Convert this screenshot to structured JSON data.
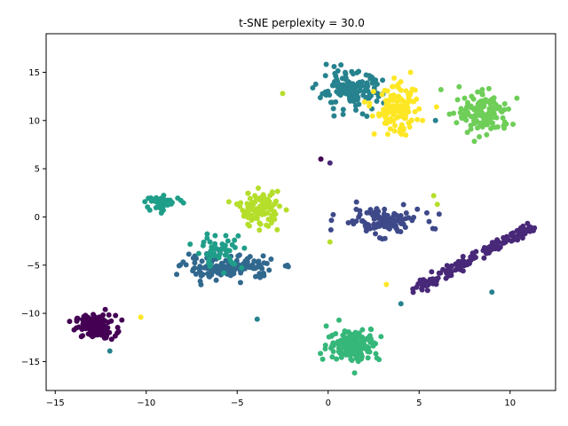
{
  "chart_data": {
    "type": "scatter",
    "title": "t-SNE perplexity = 30.0",
    "xlabel": "",
    "ylabel": "",
    "xlim": [
      -15.5,
      12.5
    ],
    "ylim": [
      -18,
      19
    ],
    "xticks": [
      -15,
      -10,
      -5,
      0,
      5,
      10
    ],
    "yticks": [
      -15,
      -10,
      -5,
      0,
      5,
      10,
      15
    ],
    "grid": false,
    "legend": "none",
    "marker_size": 3,
    "clusters": [
      {
        "color": "#440154",
        "center": [
          -12.8,
          -11.4
        ],
        "spread": [
          1.0,
          1.1
        ],
        "n": 120
      },
      {
        "color": "#482878",
        "center": [
          8.0,
          -4.1
        ],
        "spread": [
          4.0,
          0.28
        ],
        "n": 160,
        "shape": "line",
        "end_a": [
          4.8,
          -7.5
        ],
        "end_b": [
          11.2,
          -1.0
        ]
      },
      {
        "color": "#3e4989",
        "center": [
          2.9,
          -0.4
        ],
        "spread": [
          2.0,
          1.3
        ],
        "n": 110
      },
      {
        "color": "#31688e",
        "center": [
          -5.5,
          -5.2
        ],
        "spread": [
          2.3,
          1.1
        ],
        "n": 150
      },
      {
        "color": "#26828e",
        "center": [
          1.2,
          13.0
        ],
        "spread": [
          1.6,
          1.8
        ],
        "n": 140
      },
      {
        "color": "#1f9e89",
        "center": [
          -9.0,
          1.5
        ],
        "spread": [
          0.9,
          0.6
        ],
        "n": 40
      },
      {
        "color": "#1f9e89",
        "center": [
          -6.0,
          -3.5
        ],
        "spread": [
          1.2,
          1.6
        ],
        "n": 50
      },
      {
        "color": "#35b779",
        "center": [
          1.4,
          -13.2
        ],
        "spread": [
          1.3,
          1.6
        ],
        "n": 150
      },
      {
        "color": "#6ece58",
        "center": [
          8.6,
          10.6
        ],
        "spread": [
          1.3,
          1.8
        ],
        "n": 140
      },
      {
        "color": "#b5de2b",
        "center": [
          -3.8,
          0.8
        ],
        "spread": [
          1.0,
          1.6
        ],
        "n": 110
      },
      {
        "color": "#fde725",
        "center": [
          3.8,
          11.0
        ],
        "spread": [
          1.1,
          2.2
        ],
        "n": 130
      }
    ],
    "scattered_points": [
      {
        "x": -0.4,
        "y": 6.0,
        "color": "#440154"
      },
      {
        "x": 0.1,
        "y": 5.6,
        "color": "#482878"
      },
      {
        "x": -2.5,
        "y": 12.8,
        "color": "#b5de2b"
      },
      {
        "x": 5.8,
        "y": 2.2,
        "color": "#b5de2b"
      },
      {
        "x": 6.0,
        "y": 1.3,
        "color": "#b5de2b"
      },
      {
        "x": 4.0,
        "y": -9.0,
        "color": "#26828e"
      },
      {
        "x": -3.9,
        "y": -10.6,
        "color": "#26828e"
      },
      {
        "x": 0.1,
        "y": -2.6,
        "color": "#b5de2b"
      },
      {
        "x": -10.3,
        "y": -10.4,
        "color": "#fde725"
      },
      {
        "x": -12.0,
        "y": -13.9,
        "color": "#26828e"
      },
      {
        "x": 9.0,
        "y": -7.8,
        "color": "#26828e"
      },
      {
        "x": 7.2,
        "y": 13.5,
        "color": "#6ece58"
      },
      {
        "x": 6.2,
        "y": 13.2,
        "color": "#6ece58"
      },
      {
        "x": 3.2,
        "y": -7.0,
        "color": "#fde725"
      },
      {
        "x": 5.9,
        "y": 10.0,
        "color": "#26828e"
      }
    ]
  }
}
